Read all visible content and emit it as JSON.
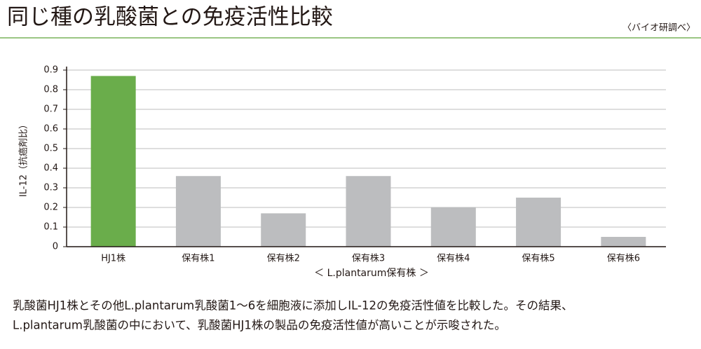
{
  "chart_data": {
    "type": "bar",
    "title": "同じ種の乳酸菌との免疫活性比較",
    "source": "〈バイオ研調べ〉",
    "x_label": "＜ L.plantarum保有株 ＞",
    "y_label": "IL-12（抗癌剤比）",
    "categories": [
      "HJ1株",
      "保有株1",
      "保有株2",
      "保有株3",
      "保有株4",
      "保有株5",
      "保有株6"
    ],
    "values": [
      0.87,
      0.36,
      0.17,
      0.36,
      0.2,
      0.25,
      0.05
    ],
    "colors": [
      "#6aad4b",
      "#bcbdbf",
      "#bcbdbf",
      "#bcbdbf",
      "#bcbdbf",
      "#bcbdbf",
      "#bcbdbf"
    ],
    "ylim": [
      0,
      0.9
    ],
    "yticks": [
      0,
      0.1,
      0.2,
      0.3,
      0.4,
      0.5,
      0.6,
      0.7,
      0.8,
      0.9
    ],
    "grid": true
  },
  "caption": [
    "乳酸菌HJ1株とその他L.plantarum乳酸菌1～6を細胞液に添加しIL-12の免疫活性値を比較した。その結果、",
    "L.plantarum乳酸菌の中において、乳酸菌HJ1株の製品の免疫活性値が高いことが示唆された。"
  ]
}
